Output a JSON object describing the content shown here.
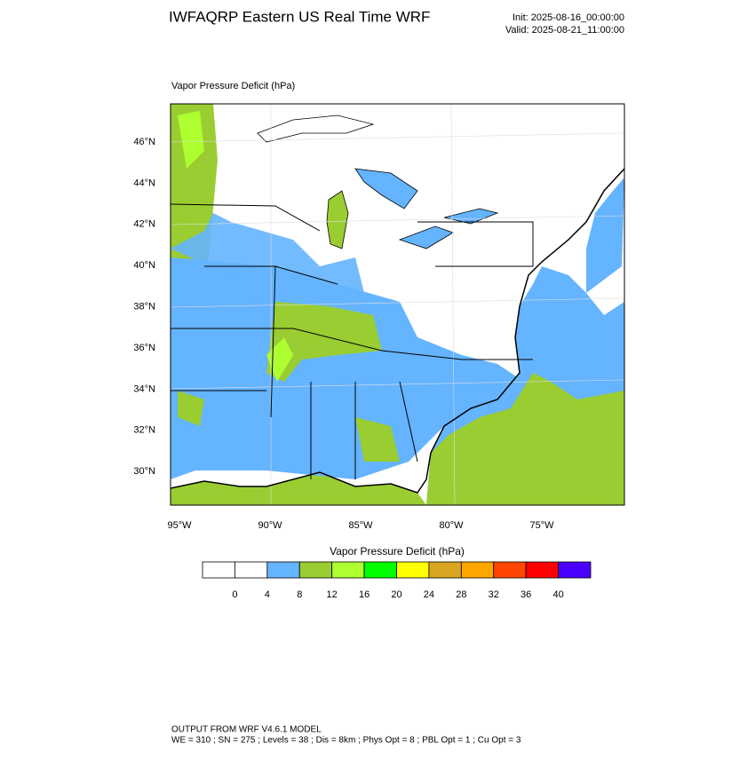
{
  "header": {
    "title": "IWFAQRP Eastern US Real Time WRF",
    "init": "Init: 2025-08-16_00:00:00",
    "valid": "Valid: 2025-08-21_11:00:00"
  },
  "map": {
    "subtitle": "Vapor Pressure Deficit   (hPa)",
    "lat_labels": [
      "46°N",
      "44°N",
      "42°N",
      "40°N",
      "38°N",
      "36°N",
      "34°N",
      "32°N",
      "30°N"
    ],
    "lon_labels": [
      "95°W",
      "90°W",
      "85°W",
      "80°W",
      "75°W"
    ]
  },
  "colorbar": {
    "title": "Vapor Pressure Deficit  (hPa)",
    "colors": [
      "#ffffff",
      "#ffffff",
      "#64b4ff",
      "#9acd32",
      "#adff2f",
      "#00ff00",
      "#ffff00",
      "#daa520",
      "#ffa500",
      "#ff4500",
      "#ff0000",
      "#4b00ff"
    ],
    "levels": [
      0,
      4,
      8,
      12,
      16,
      20,
      24,
      28,
      32,
      36,
      40
    ]
  },
  "footer": {
    "line1": "OUTPUT FROM WRF V4.6.1 MODEL",
    "line2": "WE = 310 ; SN = 275 ; Levels = 38 ; Dis = 8km ; Phys Opt = 8 ; PBL Opt = 1 ; Cu Opt = 3"
  }
}
